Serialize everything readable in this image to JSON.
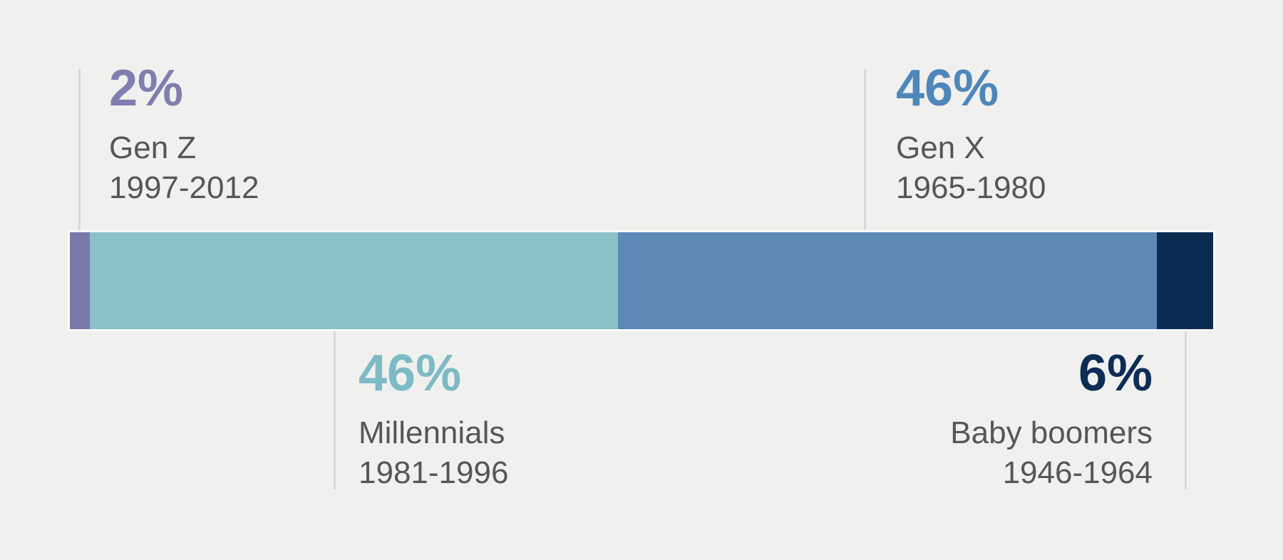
{
  "background_color": "#f0f0ee",
  "callout_line_color": "#d7d7d9",
  "label_text_color": "#565659",
  "bar_outline_color": "#f9f9f8",
  "chart_data": {
    "type": "bar",
    "variant": "single-horizontal-stacked-bar",
    "title": "",
    "unit": "%",
    "total": 100,
    "legend": "none",
    "axes": "none",
    "grid": false,
    "categories": [
      "Gen Z",
      "Millennials",
      "Gen X",
      "Baby boomers"
    ],
    "values": [
      2,
      46,
      46,
      6
    ],
    "segments": [
      {
        "name": "Gen Z",
        "years": "1997-2012",
        "value": 2,
        "value_label": "2%",
        "color": "#7a79ab",
        "text_color": "#807eb0",
        "display_width_pct": 1.75,
        "label_position": "top-left"
      },
      {
        "name": "Millennials",
        "years": "1981-1996",
        "value": 46,
        "value_label": "46%",
        "color": "#8ac0c7",
        "text_color": "#7cbac6",
        "display_width_pct": 46.2,
        "label_position": "bottom-left"
      },
      {
        "name": "Gen X",
        "years": "1965-1980",
        "value": 46,
        "value_label": "46%",
        "color": "#5d89b7",
        "text_color": "#4e87ba",
        "display_width_pct": 47.13,
        "label_position": "top-right"
      },
      {
        "name": "Baby boomers",
        "years": "1946-1964",
        "value": 6,
        "value_label": "6%",
        "color": "#0b2b53",
        "text_color": "#0d2d56",
        "display_width_pct": 4.92,
        "label_position": "bottom-right"
      }
    ]
  }
}
